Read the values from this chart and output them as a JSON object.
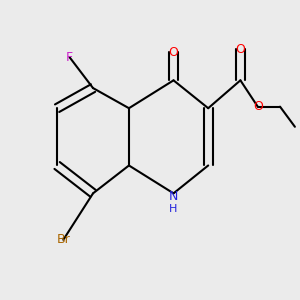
{
  "bg_color": "#EBEBEB",
  "atom_colors": {
    "C": "#000000",
    "N": "#2222DD",
    "O": "#FF0000",
    "F": "#CC22CC",
    "Br": "#AA6600"
  },
  "bond_color": "#000000",
  "bond_width": 1.5,
  "dbo": 0.08,
  "figsize": [
    3.0,
    3.0
  ],
  "dpi": 100
}
